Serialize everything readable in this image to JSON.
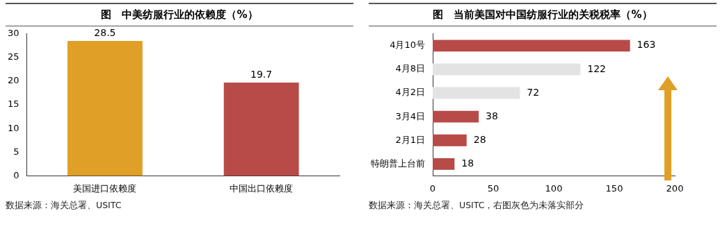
{
  "chart_data": [
    {
      "type": "bar",
      "title": "图　中美纺服行业的依赖度（%）",
      "categories": [
        "美国进口依赖度",
        "中国出口依赖度"
      ],
      "values": [
        28.5,
        19.7
      ],
      "colors": [
        "#e0a027",
        "#b84a48"
      ],
      "ylim": [
        0,
        30
      ],
      "yticks": [
        0,
        5,
        10,
        15,
        20,
        25,
        30
      ],
      "data_labels": true,
      "annotations": [
        "数据来源：海关总署、USITC"
      ]
    },
    {
      "type": "bar",
      "orientation": "horizontal",
      "title": "图　当前美国对中国纺服行业的关税税率（%）",
      "categories": [
        "4月10号",
        "4月8日",
        "4月2日",
        "3月4日",
        "2月1日",
        "特朗普上台前"
      ],
      "values": [
        163,
        122,
        72,
        38,
        28,
        18
      ],
      "colors": [
        "#b84a48",
        "#e3e3e3",
        "#e3e3e3",
        "#b84a48",
        "#b84a48",
        "#b84a48"
      ],
      "xlim": [
        0,
        200
      ],
      "xticks": [
        0,
        50,
        100,
        150,
        200
      ],
      "data_labels": true,
      "annotations": [
        "数据来源：海关总署、USITC，右图灰色为未落实部分"
      ]
    }
  ]
}
